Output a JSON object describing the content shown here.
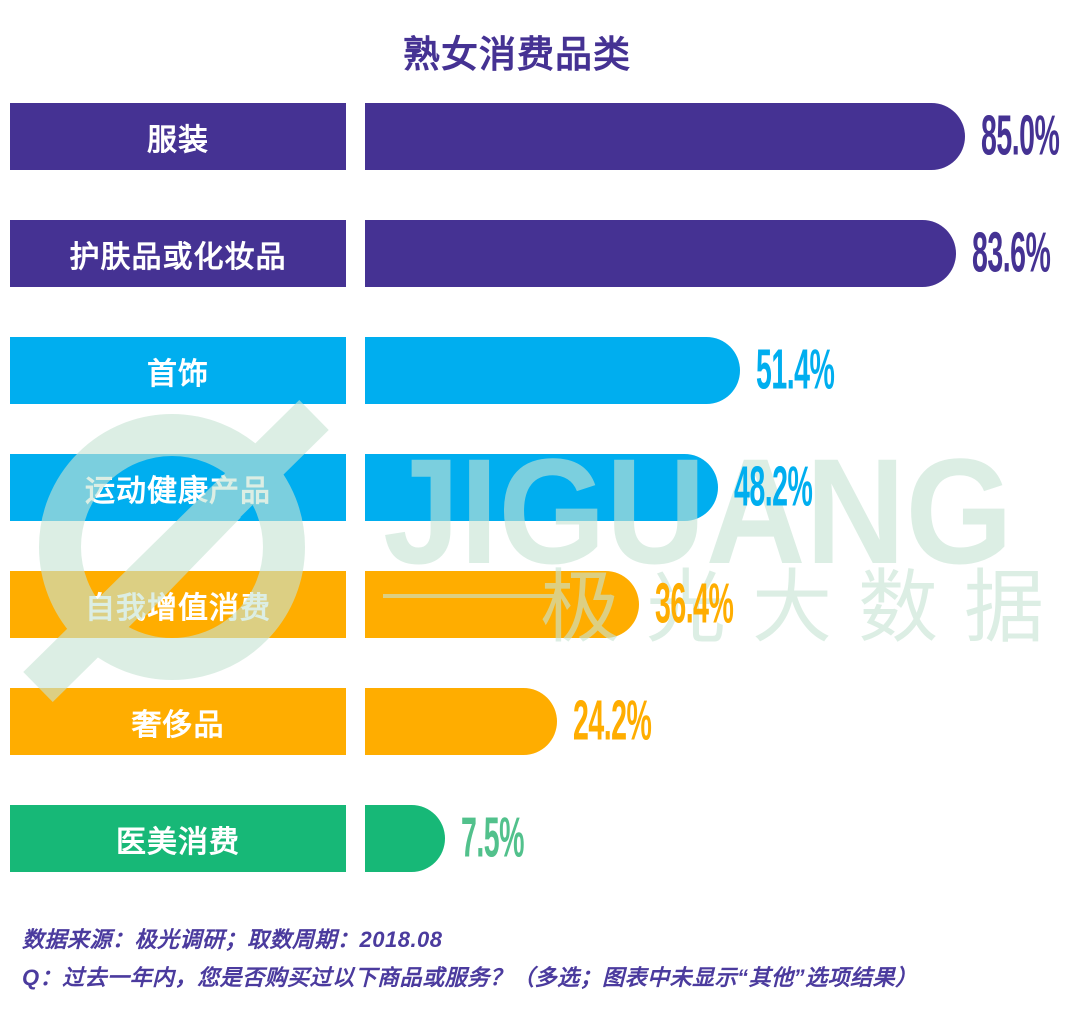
{
  "title": "熟女消费品类",
  "watermark": {
    "brand_latin": "JIGUANG",
    "brand_cjk": "极光大数据",
    "logo": "jiguang-swoosh-logo",
    "color": "#C7E4D4"
  },
  "footer": {
    "source_note": "数据来源：极光调研；取数周期：2018.08",
    "question_note": "Q：过去一年内，您是否购买过以下商品或服务？（多选；图表中未显示“其他”选项结果）"
  },
  "colors": {
    "title": "#453293",
    "purple": "#453293",
    "blue": "#00AEEF",
    "orange": "#FFAD00",
    "green": "#17B877",
    "note_text": "#4B3B9E",
    "bar_label_text": "#FFFFFF",
    "background": "#FFFFFF"
  },
  "chart_data": {
    "type": "bar",
    "orientation": "horizontal",
    "title": "熟女消费品类",
    "categories": [
      "服装",
      "护肤品或化妆品",
      "首饰",
      "运动健康产品",
      "自我增值消费",
      "奢侈品",
      "医美消费"
    ],
    "values": [
      85.0,
      83.6,
      51.4,
      48.2,
      36.4,
      24.2,
      7.5
    ],
    "value_labels": [
      "85.0%",
      "83.6%",
      "51.4%",
      "48.2%",
      "36.4%",
      "24.2%",
      "7.5%"
    ],
    "bar_colors": [
      "#453293",
      "#453293",
      "#00AEEF",
      "#00AEEF",
      "#FFAD00",
      "#FFAD00",
      "#17B877"
    ],
    "value_label_colors": [
      "#453293",
      "#453293",
      "#00AEEF",
      "#00AEEF",
      "#FFAD00",
      "#FFAD00",
      "#52C18C"
    ],
    "xlim": [
      0,
      85
    ],
    "unit": "%",
    "grid": false,
    "legend": false
  }
}
